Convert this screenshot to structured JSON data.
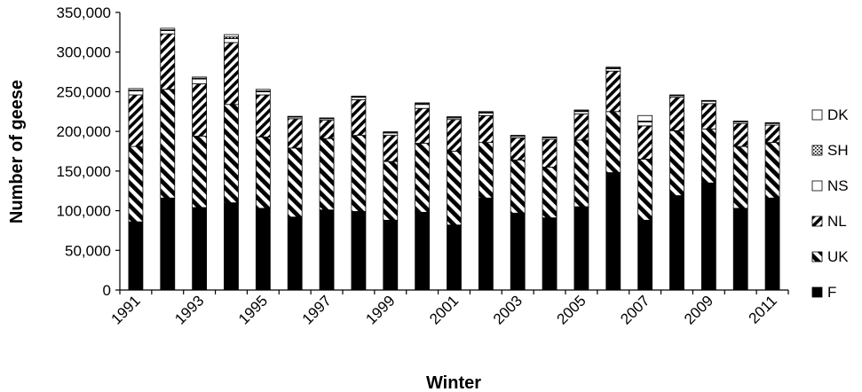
{
  "chart_data": {
    "type": "bar",
    "stacked": true,
    "xlabel": "Winter",
    "ylabel": "Number of geese",
    "ylim": [
      0,
      350000
    ],
    "yticks": [
      0,
      50000,
      100000,
      150000,
      200000,
      250000,
      300000,
      350000
    ],
    "ytick_labels": [
      "0",
      "50,000",
      "100,000",
      "150,000",
      "200,000",
      "250,000",
      "300,000",
      "350,000"
    ],
    "categories": [
      1991,
      1992,
      1993,
      1994,
      1995,
      1996,
      1997,
      1998,
      1999,
      2000,
      2001,
      2002,
      2003,
      2004,
      2005,
      2006,
      2007,
      2008,
      2009,
      2010,
      2011
    ],
    "xtick_labels": [
      "1991",
      "1993",
      "1995",
      "1997",
      "1999",
      "2001",
      "2003",
      "2005",
      "2007",
      "2009",
      "2011"
    ],
    "legend_position": "right",
    "series": [
      {
        "name": "F",
        "pattern": "solid",
        "values": [
          86000,
          116000,
          104000,
          110000,
          103000,
          92000,
          101000,
          99000,
          88000,
          98000,
          82000,
          116000,
          97000,
          91000,
          105000,
          148000,
          88000,
          119000,
          135000,
          103000,
          116000
        ]
      },
      {
        "name": "UK",
        "pattern": "back-diag",
        "values": [
          95000,
          137000,
          90000,
          124000,
          90000,
          87000,
          90000,
          96000,
          74000,
          87000,
          93000,
          70000,
          67000,
          64000,
          84000,
          77000,
          77000,
          82000,
          68000,
          78000,
          70000
        ]
      },
      {
        "name": "NL",
        "pattern": "fwd-diag",
        "values": [
          65000,
          70000,
          66000,
          78000,
          53000,
          37000,
          23000,
          45000,
          33000,
          44000,
          40000,
          34000,
          28000,
          35000,
          33000,
          51000,
          42000,
          42000,
          32000,
          29000,
          22000
        ]
      },
      {
        "name": "NS",
        "pattern": "open",
        "values": [
          5000,
          4000,
          6000,
          5000,
          4000,
          2000,
          2000,
          3000,
          3000,
          5000,
          2000,
          3000,
          2000,
          2000,
          3000,
          3000,
          5000,
          2000,
          3000,
          2000,
          2000
        ]
      },
      {
        "name": "SH",
        "pattern": "dots",
        "values": [
          1000,
          1000,
          1000,
          2000,
          1000,
          500,
          500,
          1000,
          1000,
          1000,
          500,
          1000,
          500,
          500,
          1000,
          1000,
          1000,
          500,
          500,
          500,
          500
        ]
      },
      {
        "name": "DK",
        "pattern": "open",
        "values": [
          2000,
          2000,
          1500,
          3000,
          2000,
          500,
          500,
          500,
          500,
          1000,
          1000,
          1000,
          500,
          500,
          1000,
          1000,
          7000,
          500,
          500,
          500,
          500
        ]
      }
    ],
    "legend_order": [
      "DK",
      "SH",
      "NS",
      "NL",
      "UK",
      "F"
    ]
  }
}
